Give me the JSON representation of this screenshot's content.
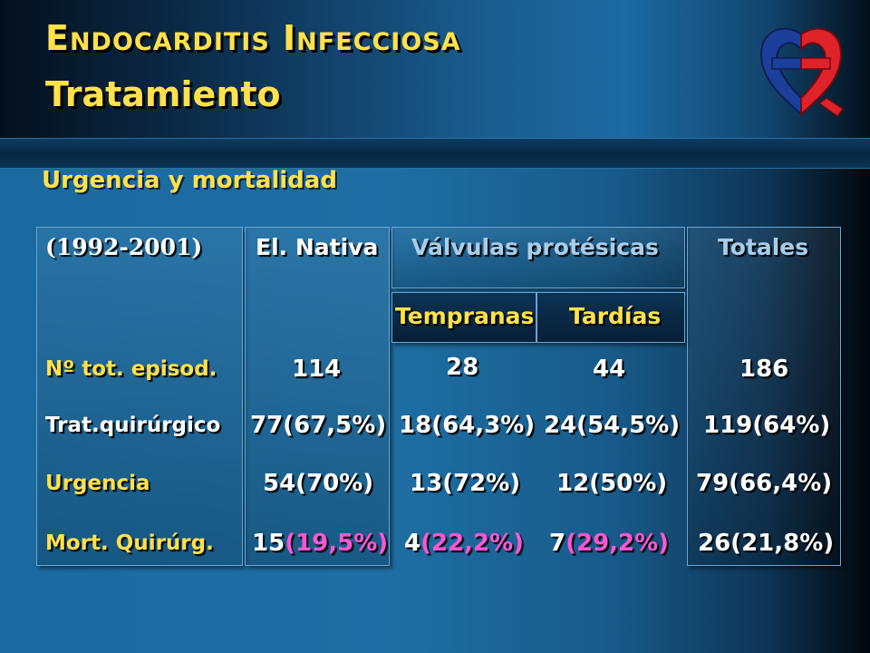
{
  "header": {
    "title": "Endocarditis Infecciosa",
    "subtitle": "Tratamiento"
  },
  "section_title": "Urgencia y mortalidad",
  "logo": {
    "icon": "heart-cross-logo-icon",
    "colors": [
      "#1b3f9a",
      "#e0222b"
    ]
  },
  "table": {
    "period": "(1992-2001)",
    "col_native": "El. Nativa",
    "col_prosthetic": "Válvulas protésicas",
    "col_early": "Tempranas",
    "col_late": "Tardías",
    "col_total": "Totales",
    "rows": [
      {
        "label": "Nº tot. episod.",
        "native": "114",
        "early": "28",
        "late": "44",
        "total": "186"
      },
      {
        "label": "Trat.quirúrgico",
        "native": "77(67,5%)",
        "early": "18(64,3%)",
        "late": "24(54,5%)",
        "total": "119(64%)"
      },
      {
        "label": "Urgencia",
        "native": "54(70%)",
        "early": "13(72%)",
        "late": "12(50%)",
        "total": "79(66,4%)"
      },
      {
        "label": "Mort. Quirúrg.",
        "native_n": "15",
        "native_pct": "(19,5%)",
        "early_n": "4",
        "early_pct": "(22,2%)",
        "late_n": "7",
        "late_pct": "(29,2%)",
        "total": "26(21,8%)"
      }
    ]
  }
}
